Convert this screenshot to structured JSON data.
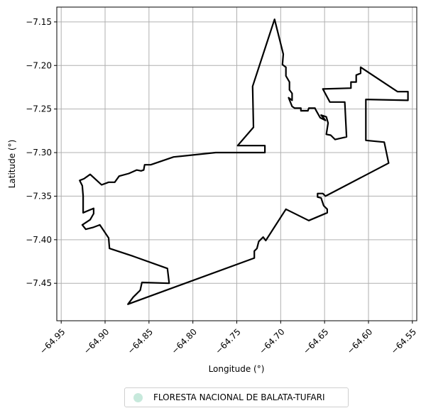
{
  "chart_data": {
    "type": "map",
    "xlabel": "Longitude (°)",
    "ylabel": "Latitude (°)",
    "xlim": [
      -64.955,
      -64.545
    ],
    "ylim": [
      -7.493,
      -7.133
    ],
    "grid": true,
    "xticks": [
      -64.95,
      -64.9,
      -64.85,
      -64.8,
      -64.75,
      -64.7,
      -64.65,
      -64.6,
      -64.55
    ],
    "xtick_labels": [
      "−64.95",
      "−64.90",
      "−64.85",
      "−64.80",
      "−64.75",
      "−64.70",
      "−64.65",
      "−64.60",
      "−64.55"
    ],
    "yticks": [
      -7.15,
      -7.2,
      -7.25,
      -7.3,
      -7.35,
      -7.4,
      -7.45
    ],
    "ytick_labels": [
      "−7.15",
      "−7.20",
      "−7.25",
      "−7.30",
      "−7.35",
      "−7.40",
      "−7.45"
    ],
    "legend": {
      "position": "bottom-center",
      "entries": [
        {
          "label": "FLORESTA NACIONAL DE BALATA-TUFARI",
          "color": "#c7e9dc"
        }
      ]
    },
    "boundary": {
      "name": "FLORESTA NACIONAL DE BALATA-TUFARI",
      "stroke": "#000000",
      "coordinates": [
        [
          -64.707,
          -7.147
        ],
        [
          -64.697,
          -7.187
        ],
        [
          -64.698,
          -7.199
        ],
        [
          -64.694,
          -7.202
        ],
        [
          -64.694,
          -7.212
        ],
        [
          -64.69,
          -7.219
        ],
        [
          -64.69,
          -7.228
        ],
        [
          -64.687,
          -7.232
        ],
        [
          -64.687,
          -7.24
        ],
        [
          -64.691,
          -7.237
        ],
        [
          -64.687,
          -7.247
        ],
        [
          -64.684,
          -7.249
        ],
        [
          -64.677,
          -7.249
        ],
        [
          -64.677,
          -7.252
        ],
        [
          -64.669,
          -7.252
        ],
        [
          -64.668,
          -7.249
        ],
        [
          -64.661,
          -7.249
        ],
        [
          -64.66,
          -7.251
        ],
        [
          -64.655,
          -7.26
        ],
        [
          -64.649,
          -7.263
        ],
        [
          -64.654,
          -7.257
        ],
        [
          -64.648,
          -7.259
        ],
        [
          -64.646,
          -7.266
        ],
        [
          -64.648,
          -7.279
        ],
        [
          -64.643,
          -7.28
        ],
        [
          -64.638,
          -7.285
        ],
        [
          -64.625,
          -7.282
        ],
        [
          -64.627,
          -7.242
        ],
        [
          -64.644,
          -7.242
        ],
        [
          -64.652,
          -7.227
        ],
        [
          -64.62,
          -7.226
        ],
        [
          -64.62,
          -7.219
        ],
        [
          -64.614,
          -7.219
        ],
        [
          -64.614,
          -7.211
        ],
        [
          -64.609,
          -7.209
        ],
        [
          -64.609,
          -7.202
        ],
        [
          -64.567,
          -7.23
        ],
        [
          -64.555,
          -7.23
        ],
        [
          -64.555,
          -7.24
        ],
        [
          -64.603,
          -7.239
        ],
        [
          -64.603,
          -7.286
        ],
        [
          -64.582,
          -7.288
        ],
        [
          -64.577,
          -7.312
        ],
        [
          -64.649,
          -7.35
        ],
        [
          -64.652,
          -7.347
        ],
        [
          -64.658,
          -7.347
        ],
        [
          -64.658,
          -7.351
        ],
        [
          -64.654,
          -7.352
        ],
        [
          -64.651,
          -7.361
        ],
        [
          -64.647,
          -7.365
        ],
        [
          -64.647,
          -7.369
        ],
        [
          -64.668,
          -7.378
        ],
        [
          -64.694,
          -7.365
        ],
        [
          -64.717,
          -7.401
        ],
        [
          -64.72,
          -7.397
        ],
        [
          -64.725,
          -7.402
        ],
        [
          -64.727,
          -7.41
        ],
        [
          -64.73,
          -7.413
        ],
        [
          -64.73,
          -7.421
        ],
        [
          -64.874,
          -7.474
        ],
        [
          -64.868,
          -7.466
        ],
        [
          -64.86,
          -7.458
        ],
        [
          -64.858,
          -7.449
        ],
        [
          -64.827,
          -7.45
        ],
        [
          -64.829,
          -7.433
        ],
        [
          -64.868,
          -7.419
        ],
        [
          -64.895,
          -7.41
        ],
        [
          -64.896,
          -7.398
        ],
        [
          -64.906,
          -7.383
        ],
        [
          -64.914,
          -7.386
        ],
        [
          -64.922,
          -7.388
        ],
        [
          -64.926,
          -7.383
        ],
        [
          -64.917,
          -7.377
        ],
        [
          -64.913,
          -7.37
        ],
        [
          -64.913,
          -7.364
        ],
        [
          -64.925,
          -7.369
        ],
        [
          -64.925,
          -7.35
        ],
        [
          -64.926,
          -7.338
        ],
        [
          -64.929,
          -7.332
        ],
        [
          -64.924,
          -7.33
        ],
        [
          -64.917,
          -7.325
        ],
        [
          -64.904,
          -7.337
        ],
        [
          -64.896,
          -7.334
        ],
        [
          -64.889,
          -7.334
        ],
        [
          -64.884,
          -7.327
        ],
        [
          -64.873,
          -7.324
        ],
        [
          -64.864,
          -7.32
        ],
        [
          -64.859,
          -7.321
        ],
        [
          -64.856,
          -7.32
        ],
        [
          -64.855,
          -7.314
        ],
        [
          -64.848,
          -7.314
        ],
        [
          -64.822,
          -7.305
        ],
        [
          -64.774,
          -7.3
        ],
        [
          -64.718,
          -7.3
        ],
        [
          -64.718,
          -7.292
        ],
        [
          -64.749,
          -7.292
        ],
        [
          -64.731,
          -7.271
        ],
        [
          -64.732,
          -7.224
        ],
        [
          -64.707,
          -7.147
        ]
      ]
    }
  }
}
